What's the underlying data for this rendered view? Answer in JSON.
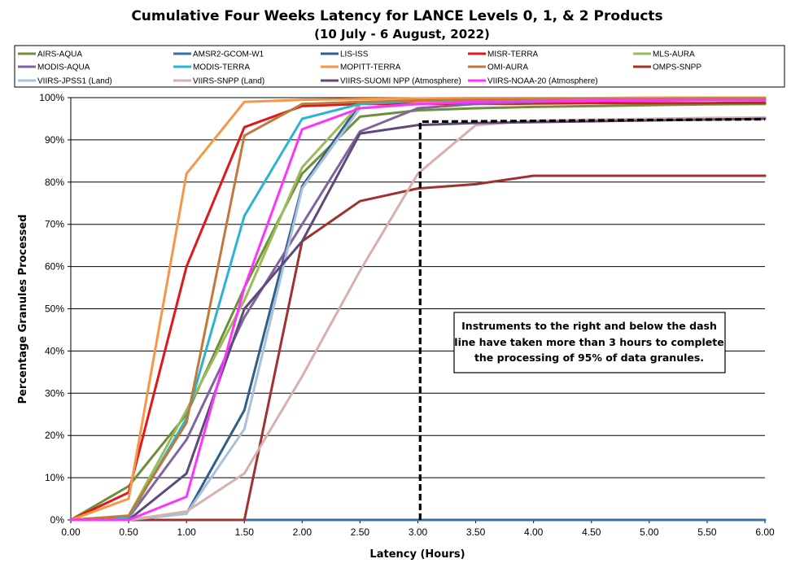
{
  "chart_data": {
    "type": "line",
    "title": "Cumulative Four Weeks Latency  for LANCE Levels 0, 1, & 2 Products",
    "subtitle": "(10  July   -  6  August,  2022)",
    "xlabel": "Latency (Hours)",
    "ylabel": "Percentage Granules Processed",
    "xlim": [
      0,
      6
    ],
    "ylim": [
      0,
      100
    ],
    "grid": "horizontal",
    "legend_position": "top",
    "x_ticks": [
      "0.00",
      "0.50",
      "1.00",
      "1.50",
      "2.00",
      "2.50",
      "3.00",
      "3.50",
      "4.00",
      "4.50",
      "5.00",
      "5.50",
      "6.00"
    ],
    "y_ticks": [
      "0%",
      "10%",
      "20%",
      "30%",
      "40%",
      "50%",
      "60%",
      "70%",
      "80%",
      "90%",
      "100%"
    ],
    "x": [
      0,
      0.5,
      1,
      1.5,
      2,
      2.5,
      3,
      3.5,
      4,
      4.5,
      5,
      5.5,
      6
    ],
    "series": [
      {
        "name": "AIRS-AQUA",
        "color": "#6e8f3a",
        "values": [
          0,
          8,
          25,
          55,
          82,
          95.5,
          97,
          97.5,
          97.8,
          98,
          98.2,
          98.4,
          98.5
        ]
      },
      {
        "name": "AMSR2-GCOM-W1",
        "color": "#3b6fa0",
        "values": [
          0,
          0,
          0,
          0,
          0,
          0,
          0,
          0,
          0,
          0,
          0,
          0,
          0
        ]
      },
      {
        "name": "LIS-ISS",
        "color": "#2f5f8a",
        "values": [
          0,
          0,
          1.5,
          26,
          79,
          98.5,
          99.5,
          99.7,
          99.8,
          99.9,
          99.9,
          100,
          100
        ]
      },
      {
        "name": "MISR-TERRA",
        "color": "#e0171b",
        "values": [
          0,
          6.5,
          60,
          93,
          98,
          98.5,
          98.5,
          98.5,
          98.6,
          98.7,
          98.7,
          98.7,
          98.8
        ]
      },
      {
        "name": "MLS-AURA",
        "color": "#9bbb59",
        "values": [
          0,
          1,
          26,
          52,
          83.5,
          98.5,
          99.5,
          99.7,
          99.8,
          99.8,
          99.8,
          99.9,
          99.9
        ]
      },
      {
        "name": "MODIS-AQUA",
        "color": "#8064a2",
        "values": [
          0,
          0.5,
          19,
          48,
          70,
          92,
          97.5,
          98.5,
          99,
          99.2,
          99.3,
          99.4,
          99.4
        ]
      },
      {
        "name": "MODIS-TERRA",
        "color": "#2ab4d2",
        "values": [
          0,
          0.5,
          24,
          72,
          95,
          98.5,
          99.2,
          99.5,
          99.6,
          99.7,
          99.7,
          99.8,
          99.8
        ]
      },
      {
        "name": "MOPITT-TERRA",
        "color": "#f79646",
        "values": [
          0,
          5,
          82,
          99,
          99.5,
          99.7,
          99.8,
          99.9,
          99.9,
          99.9,
          100,
          100,
          100
        ]
      },
      {
        "name": "OMI-AURA",
        "color": "#c0793a",
        "values": [
          0,
          1,
          23,
          91,
          98.5,
          99,
          99.3,
          99.5,
          99.6,
          99.7,
          99.7,
          99.8,
          99.8
        ]
      },
      {
        "name": "OMPS-SNPP",
        "color": "#a0322e",
        "values": [
          0,
          0,
          0,
          0,
          66,
          75.5,
          78.5,
          79.5,
          81.5,
          81.5,
          81.5,
          81.5,
          81.5
        ]
      },
      {
        "name": "VIIRS-JPSS1 (Land)",
        "color": "#a8c0dc",
        "values": [
          0,
          0,
          1.5,
          21.5,
          78.5,
          97.5,
          98.5,
          99,
          99.2,
          99.3,
          99.4,
          99.5,
          99.5
        ]
      },
      {
        "name": "VIIRS-SNPP (Land)",
        "color": "#d7b0ad",
        "values": [
          0,
          0,
          2,
          11,
          34,
          59,
          82,
          93.5,
          94.5,
          94.8,
          95,
          95.2,
          95.3
        ]
      },
      {
        "name": "VIIRS-SUOMI NPP (Atmosphere)",
        "color": "#60497a",
        "values": [
          0,
          0,
          11,
          50,
          66,
          91.5,
          93.5,
          94,
          94.2,
          94.4,
          94.6,
          94.8,
          95
        ]
      },
      {
        "name": "VIIRS-NOAA-20 (Atmosphere)",
        "color": "#ff33ff",
        "values": [
          0,
          0,
          5.5,
          55,
          92.5,
          97.5,
          98.5,
          99,
          99.2,
          99.3,
          99.4,
          99.5,
          99.5
        ]
      }
    ],
    "threshold_line": {
      "style": "dashed",
      "color": "#000000",
      "points": [
        [
          3.02,
          0
        ],
        [
          3.02,
          94.3
        ],
        [
          6,
          94.9
        ]
      ]
    },
    "annotation": {
      "lines": [
        "Instruments to the right and below the dash",
        "line have taken more than 3 hours to complete",
        "the processing of 95% of data granules."
      ],
      "anchor": [
        4.4,
        43
      ]
    }
  }
}
